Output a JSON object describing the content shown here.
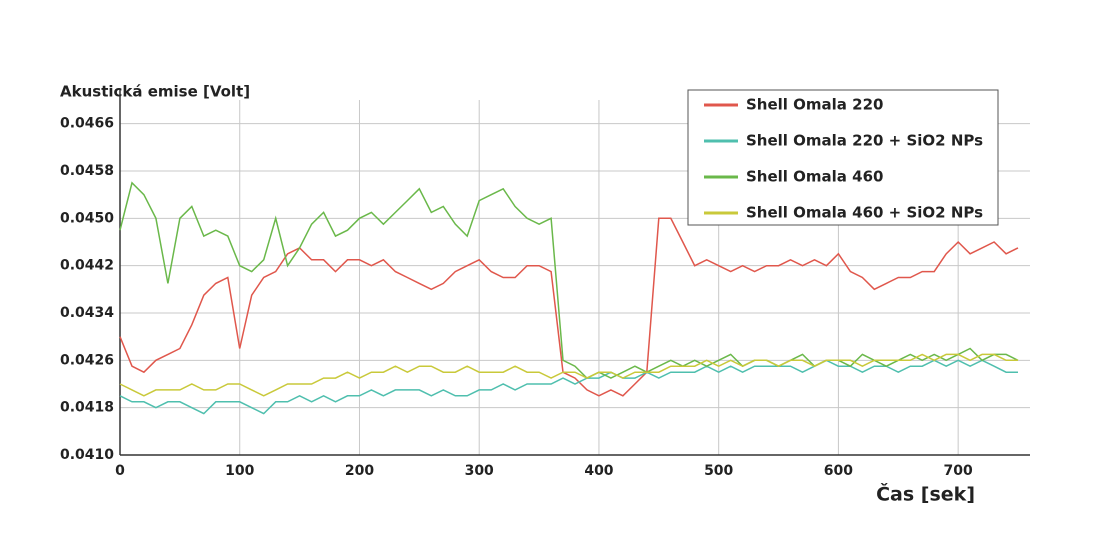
{
  "chart_data": {
    "type": "line",
    "ylabel": "Akustická emise [Volt]",
    "xlabel": "Čas [sek]",
    "xlim": [
      0,
      760
    ],
    "xticks": [
      0,
      100,
      200,
      300,
      400,
      500,
      600,
      700
    ],
    "ylim": [
      0.041,
      0.047
    ],
    "yticks": [
      {
        "value": 0.041,
        "label": "0.0410"
      },
      0.0418,
      0.0426,
      0.0434,
      0.0442,
      {
        "value": 0.045,
        "label": "0.0450"
      },
      0.0458,
      0.0466
    ],
    "grid": true,
    "legend": "upper right",
    "x": [
      0,
      10,
      20,
      30,
      40,
      50,
      60,
      70,
      80,
      90,
      100,
      110,
      120,
      130,
      140,
      150,
      160,
      170,
      180,
      190,
      200,
      210,
      220,
      230,
      240,
      250,
      260,
      270,
      280,
      290,
      300,
      310,
      320,
      330,
      340,
      350,
      360,
      370,
      380,
      390,
      400,
      410,
      420,
      430,
      440,
      450,
      460,
      470,
      480,
      490,
      500,
      510,
      520,
      530,
      540,
      550,
      560,
      570,
      580,
      590,
      600,
      610,
      620,
      630,
      640,
      650,
      660,
      670,
      680,
      690,
      700,
      710,
      720,
      730,
      740,
      750
    ],
    "series": [
      {
        "name": "Shell Omala 220",
        "color": "#e0574c",
        "values": [
          0.043,
          0.0425,
          0.0424,
          0.0426,
          0.0427,
          0.0428,
          0.0432,
          0.0437,
          0.0439,
          0.044,
          0.0428,
          0.0437,
          0.044,
          0.0441,
          0.0444,
          0.0445,
          0.0443,
          0.0443,
          0.0441,
          0.0443,
          0.0443,
          0.0442,
          0.0443,
          0.0441,
          0.044,
          0.0439,
          0.0438,
          0.0439,
          0.0441,
          0.0442,
          0.0443,
          0.0441,
          0.044,
          0.044,
          0.0442,
          0.0442,
          0.0441,
          0.0424,
          0.0423,
          0.0421,
          0.042,
          0.0421,
          0.042,
          0.0422,
          0.0424,
          0.045,
          0.045,
          0.0446,
          0.0442,
          0.0443,
          0.0442,
          0.0441,
          0.0442,
          0.0441,
          0.0442,
          0.0442,
          0.0443,
          0.0442,
          0.0443,
          0.0442,
          0.0444,
          0.0441,
          0.044,
          0.0438,
          0.0439,
          0.044,
          0.044,
          0.0441,
          0.0441,
          0.0444,
          0.0446,
          0.0444,
          0.0445,
          0.0446,
          0.0444,
          0.0445
        ]
      },
      {
        "name": "Shell Omala 220 + SiO2 NPs",
        "color": "#4fbfae",
        "values": [
          0.042,
          0.0419,
          0.0419,
          0.0418,
          0.0419,
          0.0419,
          0.0418,
          0.0417,
          0.0419,
          0.0419,
          0.0419,
          0.0418,
          0.0417,
          0.0419,
          0.0419,
          0.042,
          0.0419,
          0.042,
          0.0419,
          0.042,
          0.042,
          0.0421,
          0.042,
          0.0421,
          0.0421,
          0.0421,
          0.042,
          0.0421,
          0.042,
          0.042,
          0.0421,
          0.0421,
          0.0422,
          0.0421,
          0.0422,
          0.0422,
          0.0422,
          0.0423,
          0.0422,
          0.0423,
          0.0423,
          0.0424,
          0.0423,
          0.0423,
          0.0424,
          0.0423,
          0.0424,
          0.0424,
          0.0424,
          0.0425,
          0.0424,
          0.0425,
          0.0424,
          0.0425,
          0.0425,
          0.0425,
          0.0425,
          0.0424,
          0.0425,
          0.0426,
          0.0425,
          0.0425,
          0.0424,
          0.0425,
          0.0425,
          0.0424,
          0.0425,
          0.0425,
          0.0426,
          0.0425,
          0.0426,
          0.0425,
          0.0426,
          0.0425,
          0.0424,
          0.0424
        ]
      },
      {
        "name": "Shell Omala 460",
        "color": "#6ab84a",
        "values": [
          0.0448,
          0.0456,
          0.0454,
          0.045,
          0.0439,
          0.045,
          0.0452,
          0.0447,
          0.0448,
          0.0447,
          0.0442,
          0.0441,
          0.0443,
          0.045,
          0.0442,
          0.0445,
          0.0449,
          0.0451,
          0.0447,
          0.0448,
          0.045,
          0.0451,
          0.0449,
          0.0451,
          0.0453,
          0.0455,
          0.0451,
          0.0452,
          0.0449,
          0.0447,
          0.0453,
          0.0454,
          0.0455,
          0.0452,
          0.045,
          0.0449,
          0.045,
          0.0426,
          0.0425,
          0.0423,
          0.0424,
          0.0423,
          0.0424,
          0.0425,
          0.0424,
          0.0425,
          0.0426,
          0.0425,
          0.0426,
          0.0425,
          0.0426,
          0.0427,
          0.0425,
          0.0426,
          0.0426,
          0.0425,
          0.0426,
          0.0427,
          0.0425,
          0.0426,
          0.0426,
          0.0425,
          0.0427,
          0.0426,
          0.0425,
          0.0426,
          0.0427,
          0.0426,
          0.0427,
          0.0426,
          0.0427,
          0.0428,
          0.0426,
          0.0427,
          0.0427,
          0.0426
        ]
      },
      {
        "name": "Shell Omala 460 + SiO2 NPs",
        "color": "#c9c93a",
        "values": [
          0.0422,
          0.0421,
          0.042,
          0.0421,
          0.0421,
          0.0421,
          0.0422,
          0.0421,
          0.0421,
          0.0422,
          0.0422,
          0.0421,
          0.042,
          0.0421,
          0.0422,
          0.0422,
          0.0422,
          0.0423,
          0.0423,
          0.0424,
          0.0423,
          0.0424,
          0.0424,
          0.0425,
          0.0424,
          0.0425,
          0.0425,
          0.0424,
          0.0424,
          0.0425,
          0.0424,
          0.0424,
          0.0424,
          0.0425,
          0.0424,
          0.0424,
          0.0423,
          0.0424,
          0.0424,
          0.0423,
          0.0424,
          0.0424,
          0.0423,
          0.0424,
          0.0424,
          0.0424,
          0.0425,
          0.0425,
          0.0425,
          0.0426,
          0.0425,
          0.0426,
          0.0425,
          0.0426,
          0.0426,
          0.0425,
          0.0426,
          0.0426,
          0.0425,
          0.0426,
          0.0426,
          0.0426,
          0.0425,
          0.0426,
          0.0426,
          0.0426,
          0.0426,
          0.0427,
          0.0426,
          0.0427,
          0.0427,
          0.0426,
          0.0427,
          0.0427,
          0.0426,
          0.0426
        ]
      }
    ]
  }
}
